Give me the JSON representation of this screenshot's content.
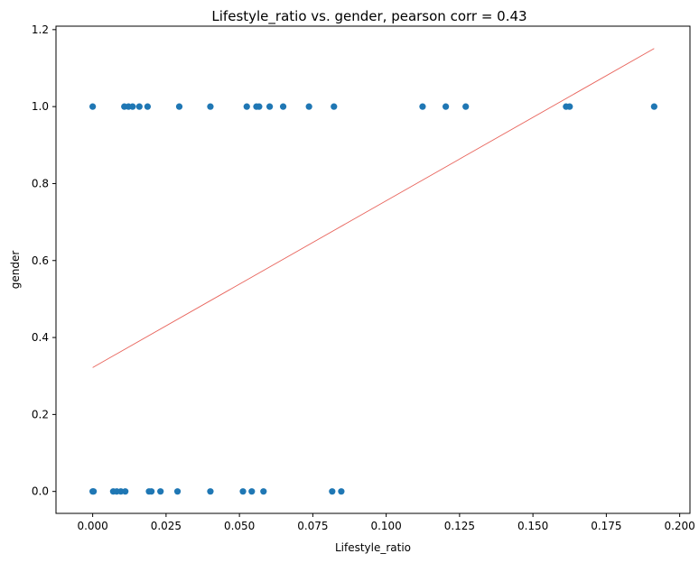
{
  "chart_data": {
    "type": "scatter",
    "title": "Lifestyle_ratio vs. gender, pearson corr = 0.43",
    "xlabel": "Lifestyle_ratio",
    "ylabel": "gender",
    "xlim": [
      -0.0125,
      0.2035
    ],
    "ylim": [
      -0.057,
      1.209
    ],
    "xticks": [
      "0.000",
      "0.025",
      "0.050",
      "0.075",
      "0.100",
      "0.125",
      "0.150",
      "0.175",
      "0.200"
    ],
    "xtick_values": [
      0.0,
      0.025,
      0.05,
      0.075,
      0.1,
      0.125,
      0.15,
      0.175,
      0.2
    ],
    "yticks": [
      "0.0",
      "0.2",
      "0.4",
      "0.6",
      "0.8",
      "1.0",
      "1.2"
    ],
    "ytick_values": [
      0.0,
      0.2,
      0.4,
      0.6,
      0.8,
      1.0,
      1.2
    ],
    "grid": false,
    "point_color": "#1f77b4",
    "line_color": "#e8635b",
    "points": [
      {
        "x": 0.0,
        "y": 1
      },
      {
        "x": 0.0108,
        "y": 1
      },
      {
        "x": 0.0122,
        "y": 1
      },
      {
        "x": 0.0136,
        "y": 1
      },
      {
        "x": 0.0159,
        "y": 1
      },
      {
        "x": 0.0187,
        "y": 1
      },
      {
        "x": 0.0295,
        "y": 1
      },
      {
        "x": 0.0401,
        "y": 1
      },
      {
        "x": 0.0525,
        "y": 1
      },
      {
        "x": 0.0558,
        "y": 1
      },
      {
        "x": 0.0567,
        "y": 1
      },
      {
        "x": 0.0603,
        "y": 1
      },
      {
        "x": 0.0649,
        "y": 1
      },
      {
        "x": 0.0737,
        "y": 1
      },
      {
        "x": 0.0822,
        "y": 1
      },
      {
        "x": 0.1124,
        "y": 1
      },
      {
        "x": 0.1203,
        "y": 1
      },
      {
        "x": 0.1271,
        "y": 1
      },
      {
        "x": 0.1613,
        "y": 1
      },
      {
        "x": 0.1625,
        "y": 1
      },
      {
        "x": 0.1913,
        "y": 1
      },
      {
        "x": 0.0,
        "y": 0
      },
      {
        "x": 0.0003,
        "y": 0
      },
      {
        "x": 0.007,
        "y": 0
      },
      {
        "x": 0.0082,
        "y": 0
      },
      {
        "x": 0.0096,
        "y": 0
      },
      {
        "x": 0.0111,
        "y": 0
      },
      {
        "x": 0.0192,
        "y": 0
      },
      {
        "x": 0.02,
        "y": 0
      },
      {
        "x": 0.0231,
        "y": 0
      },
      {
        "x": 0.0289,
        "y": 0
      },
      {
        "x": 0.0401,
        "y": 0
      },
      {
        "x": 0.0512,
        "y": 0
      },
      {
        "x": 0.0542,
        "y": 0
      },
      {
        "x": 0.0582,
        "y": 0
      },
      {
        "x": 0.0816,
        "y": 0
      },
      {
        "x": 0.0847,
        "y": 0
      }
    ],
    "trendline": {
      "x": [
        0.0,
        0.1913
      ],
      "y": [
        0.322,
        1.151
      ]
    }
  }
}
